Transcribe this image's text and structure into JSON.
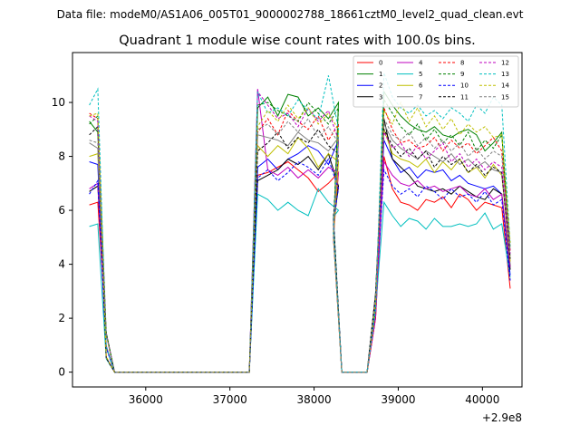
{
  "figure": {
    "suptitle": "Data file: modeM0/AS1A06_005T01_9000002788_18661cztM0_level2_quad_clean.evt"
  },
  "chart_data": {
    "type": "line",
    "title": "Quadrant 1 module wise count rates with 100.0s bins.",
    "xlabel": "",
    "ylabel": "",
    "x_offset_label": "+2.9e8",
    "xlim": [
      35130,
      40470
    ],
    "ylim": [
      -0.55,
      11.85
    ],
    "xticks": [
      36000,
      37000,
      38000,
      39000,
      40000
    ],
    "xtick_labels": [
      "36000",
      "37000",
      "38000",
      "39000",
      "40000"
    ],
    "yticks": [
      0,
      2,
      4,
      6,
      8,
      10
    ],
    "ytick_labels": [
      "0",
      "2",
      "4",
      "6",
      "8",
      "10"
    ],
    "grid": false,
    "legend_position": "top-right",
    "legend_columns": 4,
    "series": [
      {
        "name": "0",
        "color": "#ff0000",
        "dash": "solid",
        "seg1": [
          6.2,
          6.3
        ],
        "seg2": [
          7.3,
          7.4,
          7.6,
          7.8,
          7.5,
          7.2,
          6.7,
          7.0,
          7.4
        ],
        "seg3": [
          8.0,
          6.8,
          6.3,
          6.2,
          6.0,
          6.4,
          6.3,
          6.5,
          6.1,
          6.6,
          6.4,
          6.0,
          6.3,
          6.2,
          6.1,
          3.1
        ]
      },
      {
        "name": "1",
        "color": "#008000",
        "dash": "solid",
        "seg1": [
          9.3,
          8.9
        ],
        "seg2": [
          9.8,
          10.2,
          9.5,
          10.3,
          10.2,
          9.5,
          9.8,
          9.4,
          10.0
        ],
        "seg3": [
          10.4,
          9.9,
          9.5,
          9.2,
          9.0,
          8.9,
          9.1,
          8.8,
          8.7,
          8.9,
          9.0,
          8.8,
          8.2,
          8.5,
          8.9,
          3.9
        ]
      },
      {
        "name": "2",
        "color": "#0000ff",
        "dash": "solid",
        "seg1": [
          7.8,
          7.7
        ],
        "seg2": [
          7.6,
          7.9,
          7.5,
          7.9,
          8.1,
          8.4,
          8.2,
          7.7,
          8.6
        ],
        "seg3": [
          8.6,
          7.9,
          7.4,
          7.6,
          7.2,
          7.5,
          7.4,
          7.5,
          7.1,
          7.3,
          7.0,
          6.9,
          6.8,
          6.9,
          6.6,
          3.6
        ]
      },
      {
        "name": "3",
        "color": "#000000",
        "dash": "solid",
        "seg1": [
          6.7,
          6.9
        ],
        "seg2": [
          7.1,
          7.3,
          7.5,
          7.9,
          7.7,
          8.0,
          7.5,
          8.1,
          6.9
        ],
        "seg3": [
          9.4,
          7.9,
          7.6,
          7.3,
          6.9,
          6.8,
          6.7,
          6.8,
          6.6,
          6.9,
          6.7,
          6.5,
          6.4,
          6.8,
          6.6,
          3.8
        ]
      },
      {
        "name": "4",
        "color": "#bf00bf",
        "dash": "solid",
        "seg1": [
          6.8,
          7.0
        ],
        "seg2": [
          10.5,
          7.5,
          7.3,
          7.6,
          7.2,
          7.5,
          7.2,
          7.6,
          7.4
        ],
        "seg3": [
          7.8,
          7.3,
          7.0,
          6.9,
          7.1,
          6.8,
          6.9,
          6.7,
          6.8,
          6.9,
          6.6,
          6.5,
          6.8,
          6.4,
          6.6,
          3.9
        ]
      },
      {
        "name": "5",
        "color": "#00bfbf",
        "dash": "solid",
        "seg1": [
          5.4,
          5.5
        ],
        "seg2": [
          6.6,
          6.4,
          6.0,
          6.3,
          6.0,
          5.8,
          6.8,
          6.3,
          6.0
        ],
        "seg3": [
          6.3,
          5.8,
          5.4,
          5.7,
          5.6,
          5.3,
          5.7,
          5.4,
          5.4,
          5.5,
          5.4,
          5.5,
          5.9,
          5.3,
          5.5,
          3.5
        ]
      },
      {
        "name": "6",
        "color": "#bfbf00",
        "dash": "solid",
        "seg1": [
          8.0,
          8.1
        ],
        "seg2": [
          8.4,
          8.0,
          8.4,
          8.1,
          8.7,
          8.3,
          7.6,
          8.1,
          7.8
        ],
        "seg3": [
          9.0,
          8.1,
          7.9,
          7.8,
          7.6,
          7.9,
          7.4,
          7.8,
          7.5,
          7.9,
          7.4,
          7.6,
          7.2,
          7.7,
          7.3,
          4.1
        ]
      },
      {
        "name": "7",
        "color": "#808080",
        "dash": "solid",
        "seg1": [
          8.5,
          8.3
        ],
        "seg2": [
          8.8,
          8.7,
          8.6,
          8.4,
          8.9,
          8.6,
          8.5,
          8.2,
          8.7
        ],
        "seg3": [
          9.2,
          8.6,
          8.3,
          8.1,
          7.9,
          8.2,
          8.0,
          7.8,
          8.1,
          7.7,
          7.9,
          7.6,
          7.8,
          7.5,
          7.4,
          4.3
        ]
      },
      {
        "name": "8",
        "color": "#ff0000",
        "dash": "dashed",
        "seg1": [
          9.6,
          9.4
        ],
        "seg2": [
          8.9,
          9.4,
          8.8,
          9.7,
          9.3,
          9.0,
          9.5,
          8.6,
          9.2
        ],
        "seg3": [
          9.8,
          9.0,
          8.5,
          8.6,
          8.3,
          8.4,
          8.7,
          8.2,
          8.6,
          8.3,
          8.5,
          8.1,
          8.4,
          8.7,
          8.2,
          4.5
        ]
      },
      {
        "name": "9",
        "color": "#008000",
        "dash": "dashed",
        "seg1": [
          9.2,
          9.5
        ],
        "seg2": [
          9.9,
          10.0,
          9.7,
          9.5,
          9.3,
          10.0,
          9.6,
          9.2,
          9.8
        ],
        "seg3": [
          10.1,
          9.6,
          9.1,
          8.8,
          9.2,
          8.6,
          9.0,
          8.5,
          8.8,
          8.4,
          8.9,
          8.2,
          8.6,
          8.3,
          8.8,
          4.6
        ]
      },
      {
        "name": "10",
        "color": "#0000ff",
        "dash": "dashed",
        "seg1": [
          6.6,
          7.1
        ],
        "seg2": [
          7.2,
          7.5,
          7.1,
          7.4,
          7.8,
          7.6,
          7.3,
          7.9,
          6.8
        ],
        "seg3": [
          7.5,
          6.9,
          6.6,
          6.8,
          6.5,
          6.9,
          6.7,
          6.4,
          6.8,
          6.5,
          6.6,
          6.3,
          6.7,
          6.2,
          6.4,
          3.4
        ]
      },
      {
        "name": "11",
        "color": "#000000",
        "dash": "dashed",
        "seg1": [
          8.8,
          9.1
        ],
        "seg2": [
          8.2,
          8.5,
          8.9,
          8.3,
          8.7,
          8.5,
          9.0,
          8.4,
          8.1
        ],
        "seg3": [
          9.0,
          8.4,
          8.0,
          8.3,
          7.9,
          8.2,
          7.6,
          8.0,
          7.7,
          7.9,
          7.4,
          7.7,
          7.3,
          7.6,
          7.4,
          4.2
        ]
      },
      {
        "name": "12",
        "color": "#bf00bf",
        "dash": "dashed",
        "seg1": [
          9.5,
          9.3
        ],
        "seg2": [
          10.4,
          9.9,
          9.4,
          9.6,
          9.1,
          9.8,
          9.3,
          9.7,
          8.6
        ],
        "seg3": [
          8.9,
          8.3,
          8.5,
          8.0,
          8.4,
          7.9,
          8.2,
          8.5,
          7.8,
          8.1,
          7.6,
          7.9,
          7.5,
          7.8,
          7.6,
          4.4
        ]
      },
      {
        "name": "13",
        "color": "#00bfbf",
        "dash": "dashed",
        "seg1": [
          9.9,
          10.5
        ],
        "seg2": [
          10.4,
          9.6,
          9.8,
          9.5,
          10.1,
          9.7,
          9.4,
          11.0,
          9.0
        ],
        "seg3": [
          11.1,
          10.2,
          9.8,
          9.6,
          9.9,
          9.5,
          9.7,
          9.4,
          9.8,
          9.6,
          9.3,
          9.9,
          9.6,
          10.2,
          9.9,
          4.7
        ]
      },
      {
        "name": "14",
        "color": "#bfbf00",
        "dash": "dashed",
        "seg1": [
          9.5,
          9.6
        ],
        "seg2": [
          9.1,
          9.7,
          9.3,
          9.9,
          9.4,
          9.8,
          9.2,
          9.6,
          9.0
        ],
        "seg3": [
          9.7,
          9.2,
          10.0,
          9.3,
          9.8,
          9.1,
          9.5,
          9.0,
          9.4,
          8.8,
          9.2,
          8.9,
          9.1,
          8.7,
          8.8,
          4.8
        ]
      },
      {
        "name": "15",
        "color": "#808080",
        "dash": "dashed",
        "seg1": [
          8.6,
          8.5
        ],
        "seg2": [
          9.0,
          9.2,
          8.8,
          9.3,
          8.9,
          9.4,
          8.7,
          9.1,
          8.5
        ],
        "seg3": [
          9.4,
          8.8,
          8.6,
          8.9,
          8.4,
          8.7,
          8.3,
          8.6,
          8.2,
          8.5,
          8.0,
          8.3,
          7.9,
          8.2,
          8.0,
          4.5
        ]
      }
    ]
  }
}
